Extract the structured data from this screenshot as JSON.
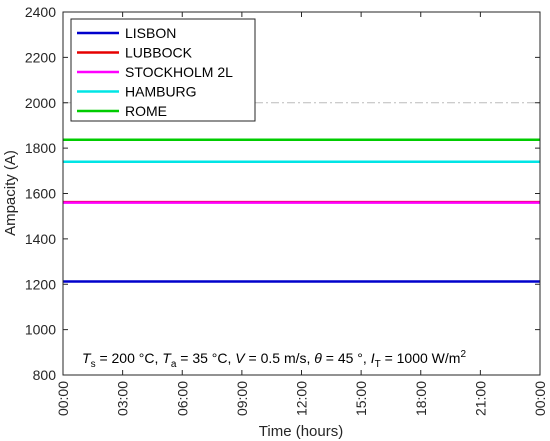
{
  "chart_data": {
    "type": "line",
    "xlabel": "Time (hours)",
    "ylabel": "Ampacity (A)",
    "x_ticks": [
      "00:00",
      "03:00",
      "06:00",
      "09:00",
      "12:00",
      "15:00",
      "18:00",
      "21:00",
      "00:00"
    ],
    "x_range_hours": [
      0,
      24
    ],
    "ylim": [
      800,
      2400
    ],
    "y_ticks": [
      800,
      1000,
      1200,
      1400,
      1600,
      1800,
      2000,
      2200,
      2400
    ],
    "grid": false,
    "legend_position": "top-left",
    "reference_line": {
      "y": 2000,
      "style": "dash-dot",
      "color": "#bbbbbb"
    },
    "series": [
      {
        "name": "LISBON",
        "color": "#0000cc",
        "x": [
          0,
          24
        ],
        "values": [
          1212,
          1212
        ]
      },
      {
        "name": "LUBBOCK",
        "color": "#e60000",
        "x": [
          0,
          24
        ],
        "values": [
          1562,
          1562
        ]
      },
      {
        "name": "STOCKHOLM 2L",
        "color": "#ff00ff",
        "x": [
          0,
          24
        ],
        "values": [
          1560,
          1560
        ]
      },
      {
        "name": "HAMBURG",
        "color": "#00e5e5",
        "x": [
          0,
          24
        ],
        "values": [
          1740,
          1740
        ]
      },
      {
        "name": "ROME",
        "color": "#00cc00",
        "x": [
          0,
          24
        ],
        "values": [
          1837,
          1837
        ]
      }
    ],
    "annotation": {
      "t_s_symbol": "T",
      "t_s_sub": "s",
      "t_s_rest": " = 200 °C, ",
      "t_a_symbol": "T",
      "t_a_sub": "a",
      "t_a_rest": " = 35 °C, ",
      "v_symbol": "V",
      "v_rest": " = 0.5 m/s, ",
      "theta_symbol": "θ",
      "theta_rest": " = 45 °, ",
      "i_symbol": "I",
      "i_sub": "T",
      "i_rest": " = 1000 W/m",
      "i_sup": "2"
    }
  }
}
